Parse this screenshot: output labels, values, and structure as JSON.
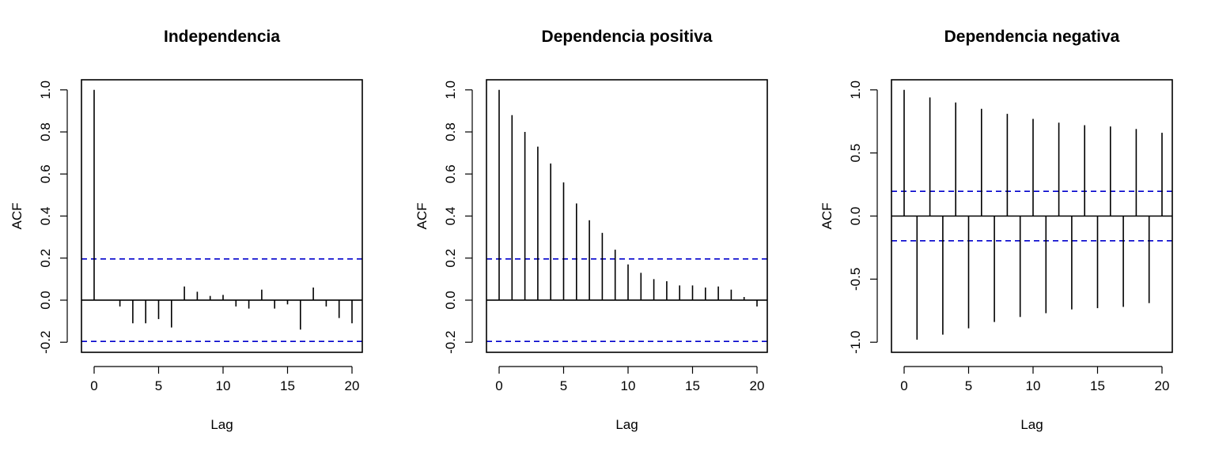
{
  "chart_data": [
    {
      "type": "bar",
      "title": "Independencia",
      "xlabel": "Lag",
      "ylabel": "ACF",
      "xlim": [
        0,
        20
      ],
      "ylim": [
        -0.2,
        1.0
      ],
      "x_ticks": [
        "0",
        "5",
        "10",
        "15",
        "20"
      ],
      "y_ticks": [
        "-0.2",
        "0.0",
        "0.2",
        "0.4",
        "0.6",
        "0.8",
        "1.0"
      ],
      "confidence_bounds": [
        0.196,
        -0.196
      ],
      "bound_color": "#0000cc",
      "grid": false,
      "lags": [
        0,
        1,
        2,
        3,
        4,
        5,
        6,
        7,
        8,
        9,
        10,
        11,
        12,
        13,
        14,
        15,
        16,
        17,
        18,
        19,
        20
      ],
      "values": [
        1.0,
        0.0,
        -0.03,
        -0.11,
        -0.11,
        -0.09,
        -0.13,
        0.065,
        0.04,
        0.02,
        0.025,
        -0.03,
        -0.04,
        0.05,
        -0.04,
        -0.02,
        -0.14,
        0.06,
        -0.03,
        -0.085,
        -0.11
      ]
    },
    {
      "type": "bar",
      "title": "Dependencia positiva",
      "xlabel": "Lag",
      "ylabel": "ACF",
      "xlim": [
        0,
        20
      ],
      "ylim": [
        -0.2,
        1.0
      ],
      "x_ticks": [
        "0",
        "5",
        "10",
        "15",
        "20"
      ],
      "y_ticks": [
        "-0.2",
        "0.0",
        "0.2",
        "0.4",
        "0.6",
        "0.8",
        "1.0"
      ],
      "confidence_bounds": [
        0.196,
        -0.196
      ],
      "bound_color": "#0000cc",
      "grid": false,
      "lags": [
        0,
        1,
        2,
        3,
        4,
        5,
        6,
        7,
        8,
        9,
        10,
        11,
        12,
        13,
        14,
        15,
        16,
        17,
        18,
        19,
        20
      ],
      "values": [
        1.0,
        0.88,
        0.8,
        0.73,
        0.65,
        0.56,
        0.46,
        0.38,
        0.32,
        0.24,
        0.17,
        0.13,
        0.1,
        0.09,
        0.07,
        0.07,
        0.06,
        0.065,
        0.05,
        0.015,
        -0.03
      ]
    },
    {
      "type": "bar",
      "title": "Dependencia negativa",
      "xlabel": "Lag",
      "ylabel": "ACF",
      "xlim": [
        0,
        20
      ],
      "ylim": [
        -1.0,
        1.0
      ],
      "x_ticks": [
        "0",
        "5",
        "10",
        "15",
        "20"
      ],
      "y_ticks": [
        "-1.0",
        "-0.5",
        "0.0",
        "0.5",
        "1.0"
      ],
      "confidence_bounds": [
        0.196,
        -0.196
      ],
      "bound_color": "#0000cc",
      "grid": false,
      "lags": [
        0,
        1,
        2,
        3,
        4,
        5,
        6,
        7,
        8,
        9,
        10,
        11,
        12,
        13,
        14,
        15,
        16,
        17,
        18,
        19,
        20
      ],
      "values": [
        1.0,
        -0.98,
        0.94,
        -0.94,
        0.9,
        -0.89,
        0.85,
        -0.84,
        0.81,
        -0.8,
        0.77,
        -0.77,
        0.74,
        -0.74,
        0.72,
        -0.73,
        0.71,
        -0.72,
        0.69,
        -0.69,
        0.66
      ]
    }
  ]
}
